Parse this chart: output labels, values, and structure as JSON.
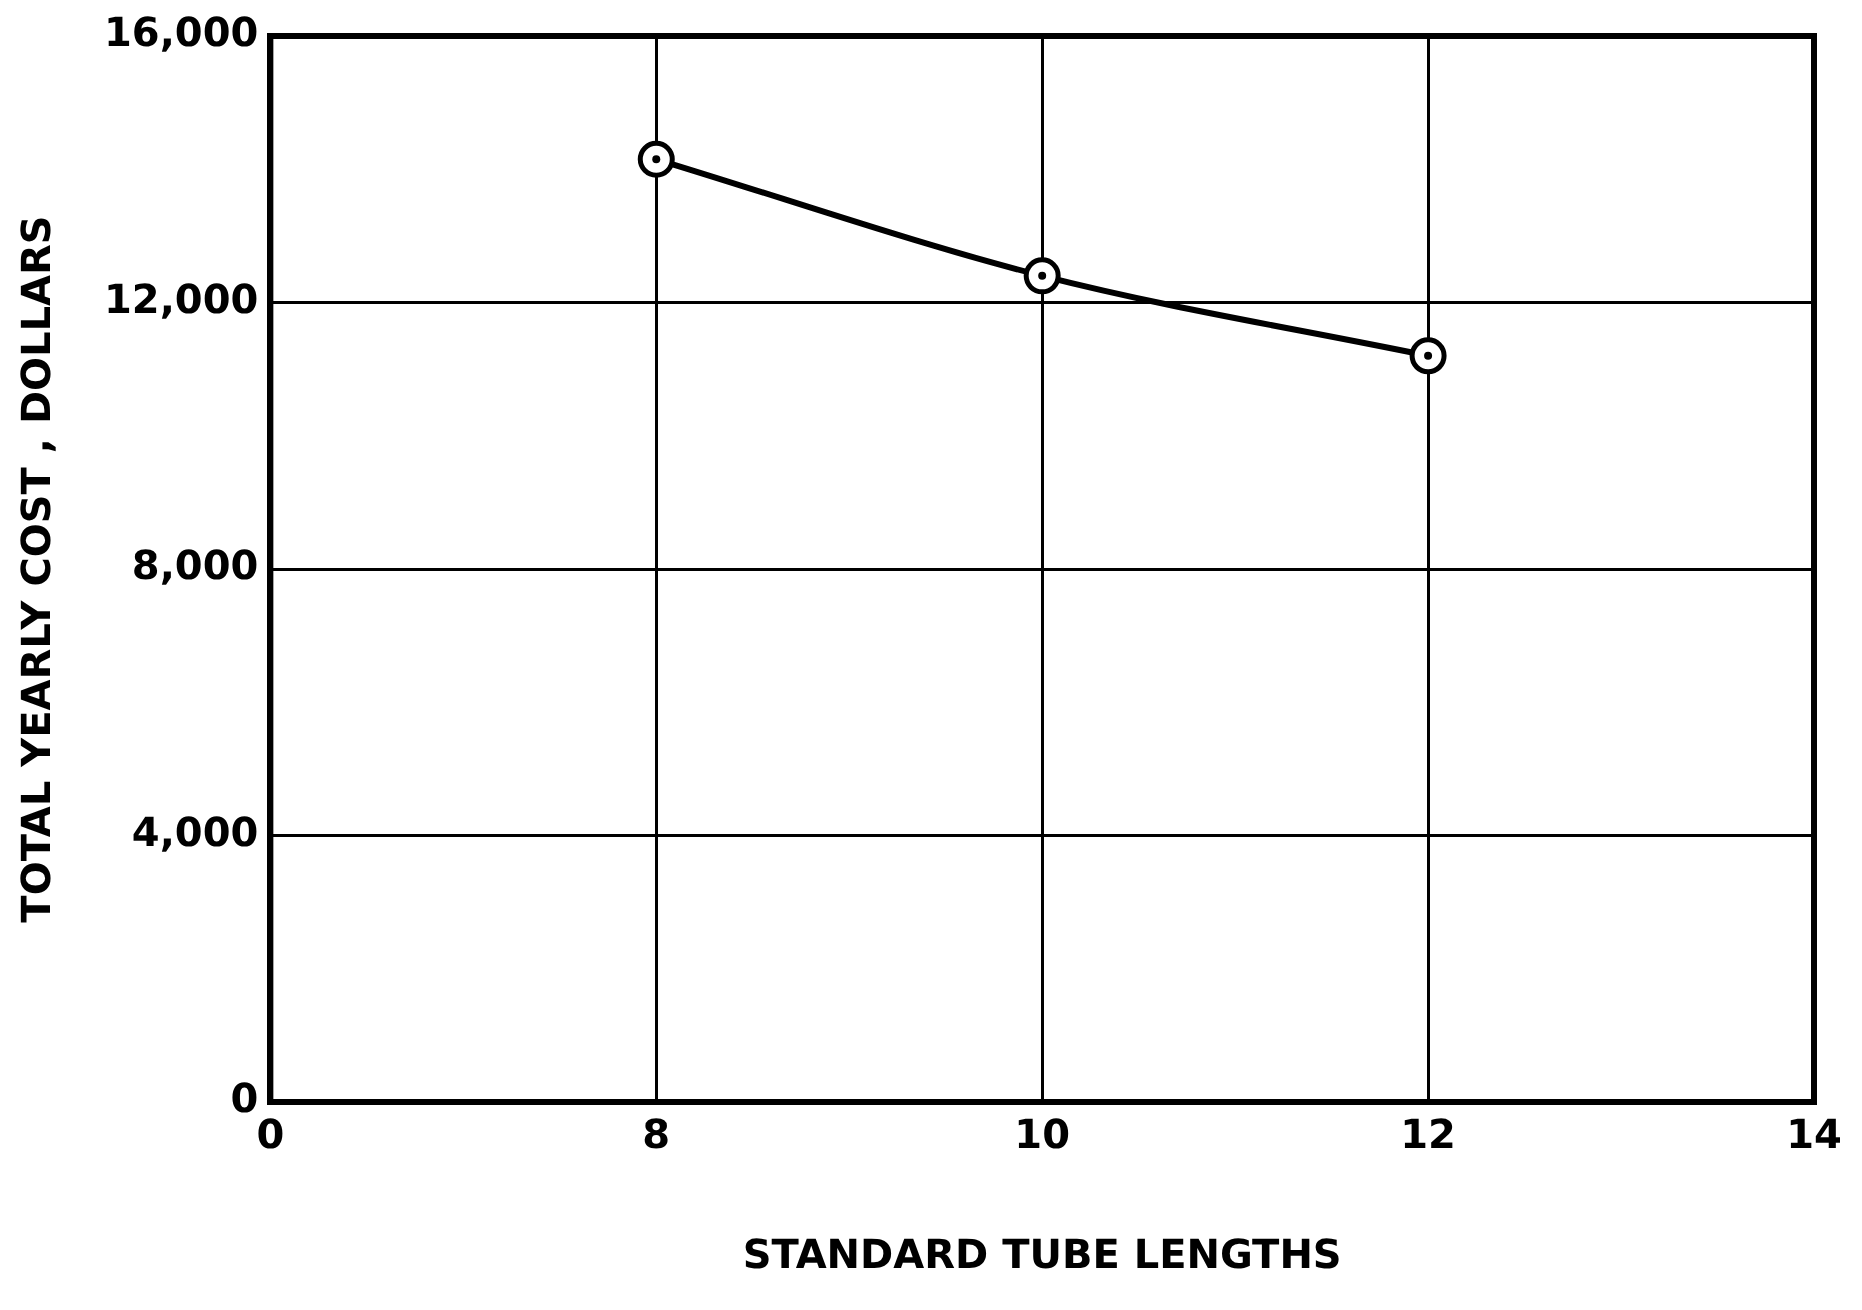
{
  "chart_data": {
    "type": "line",
    "xlabel": "STANDARD TUBE LENGTHS",
    "ylabel": "TOTAL YEARLY COST , DOLLARS",
    "categories": [
      "0",
      "8",
      "10",
      "12",
      "14"
    ],
    "series": [
      {
        "color": "#000000",
        "values": [
          null,
          14150,
          12400,
          11200,
          null
        ]
      }
    ],
    "ylim": [
      0,
      16000
    ],
    "yticks": [
      {
        "value": 0,
        "label": "0"
      },
      {
        "value": 4000,
        "label": "4,000"
      },
      {
        "value": 8000,
        "label": "8,000"
      },
      {
        "value": 12000,
        "label": "12,000"
      },
      {
        "value": 16000,
        "label": "16,000"
      }
    ],
    "grid": true,
    "legend": false,
    "marker": "circle",
    "line_style": "solid"
  }
}
